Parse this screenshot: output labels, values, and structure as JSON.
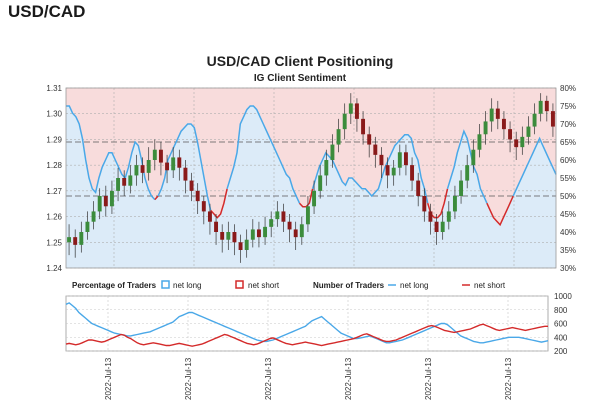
{
  "heading": "USD/CAD",
  "chart_data": {
    "type": "line",
    "title": "USD/CAD Client Positioning",
    "subtitle": "IG Client Sentiment",
    "price_axis": {
      "ticks": [
        "1.24",
        "1.25",
        "1.26",
        "1.27",
        "1.28",
        "1.29",
        "1.30",
        "1.31"
      ],
      "ylim": [
        1.24,
        1.31
      ]
    },
    "percent_axis": {
      "ticks": [
        "30%",
        "35%",
        "40%",
        "45%",
        "50%",
        "55%",
        "60%",
        "65%",
        "70%",
        "75%",
        "80%"
      ],
      "ylim": [
        30,
        80
      ]
    },
    "traders_axis": {
      "ticks": [
        "200",
        "400",
        "600",
        "800",
        "1000"
      ],
      "ylim": [
        200,
        1000
      ]
    },
    "x_tick_labels": [
      "2022-Jul-13",
      "2022-Jul-13",
      "2022-Jul-13",
      "2022-Jul-13",
      "2022-Jul-13",
      "2022-Jul-13"
    ],
    "legend": {
      "pct_label": "Percentage of Traders",
      "pct_long": "net long",
      "pct_short": "net short",
      "num_label": "Number of Traders",
      "num_long": "net long",
      "num_short": "net short"
    },
    "colors": {
      "long": "#4aa8e8",
      "short": "#d42a2a",
      "long_fill": "#dcebf8",
      "short_fill": "#f8dcdc",
      "up": "#3c8c3c",
      "down": "#8a1a1a"
    },
    "net_long_pct": [
      75,
      75,
      73,
      72,
      70,
      66,
      60,
      55,
      52,
      51,
      55,
      58,
      60,
      62,
      62,
      60,
      58,
      56,
      55,
      58,
      62,
      65,
      64,
      60,
      55,
      52,
      50,
      49,
      50,
      52,
      55,
      60,
      62,
      64,
      66,
      68,
      69,
      70,
      70,
      69,
      65,
      60,
      55,
      50,
      46,
      45,
      44,
      45,
      48,
      52,
      55,
      58,
      62,
      70,
      72,
      74,
      75,
      75,
      74,
      72,
      70,
      68,
      66,
      64,
      62,
      60,
      58,
      56,
      55,
      52,
      50,
      48,
      47,
      47,
      48,
      52,
      55,
      58,
      60,
      62,
      61,
      60,
      58,
      56,
      54,
      53,
      55,
      55,
      54,
      53,
      52,
      52,
      51,
      50,
      51,
      52,
      55,
      58,
      60,
      62,
      64,
      65,
      66,
      67,
      67,
      66,
      62,
      60,
      55,
      52,
      48,
      45,
      44,
      44,
      45,
      48,
      52,
      55,
      58,
      62,
      65,
      68,
      66,
      62,
      58,
      56,
      52,
      50,
      48,
      46,
      44,
      43,
      42,
      44,
      46,
      48,
      50,
      52,
      54,
      56,
      58,
      60,
      62,
      64,
      66,
      64,
      62,
      60,
      58,
      56
    ],
    "candles": [
      [
        1.25,
        1.252,
        1.245,
        1.257
      ],
      [
        1.252,
        1.249,
        1.244,
        1.255
      ],
      [
        1.249,
        1.254,
        1.246,
        1.258
      ],
      [
        1.254,
        1.258,
        1.251,
        1.262
      ],
      [
        1.258,
        1.262,
        1.255,
        1.266
      ],
      [
        1.262,
        1.268,
        1.259,
        1.271
      ],
      [
        1.268,
        1.264,
        1.26,
        1.272
      ],
      [
        1.264,
        1.27,
        1.261,
        1.274
      ],
      [
        1.27,
        1.275,
        1.266,
        1.279
      ],
      [
        1.275,
        1.272,
        1.268,
        1.278
      ],
      [
        1.272,
        1.276,
        1.269,
        1.28
      ],
      [
        1.276,
        1.28,
        1.272,
        1.284
      ],
      [
        1.28,
        1.277,
        1.273,
        1.283
      ],
      [
        1.277,
        1.282,
        1.274,
        1.287
      ],
      [
        1.282,
        1.286,
        1.278,
        1.29
      ],
      [
        1.286,
        1.281,
        1.276,
        1.289
      ],
      [
        1.281,
        1.278,
        1.273,
        1.284
      ],
      [
        1.278,
        1.283,
        1.275,
        1.287
      ],
      [
        1.283,
        1.279,
        1.274,
        1.286
      ],
      [
        1.279,
        1.274,
        1.269,
        1.282
      ],
      [
        1.274,
        1.27,
        1.266,
        1.277
      ],
      [
        1.27,
        1.266,
        1.261,
        1.273
      ],
      [
        1.266,
        1.262,
        1.257,
        1.268
      ],
      [
        1.262,
        1.258,
        1.253,
        1.265
      ],
      [
        1.258,
        1.254,
        1.249,
        1.261
      ],
      [
        1.254,
        1.251,
        1.246,
        1.257
      ],
      [
        1.251,
        1.254,
        1.247,
        1.258
      ],
      [
        1.254,
        1.25,
        1.245,
        1.257
      ],
      [
        1.25,
        1.247,
        1.242,
        1.253
      ],
      [
        1.247,
        1.251,
        1.244,
        1.255
      ],
      [
        1.251,
        1.255,
        1.248,
        1.259
      ],
      [
        1.255,
        1.252,
        1.248,
        1.258
      ],
      [
        1.252,
        1.256,
        1.249,
        1.26
      ],
      [
        1.256,
        1.259,
        1.252,
        1.262
      ],
      [
        1.259,
        1.262,
        1.256,
        1.266
      ],
      [
        1.262,
        1.258,
        1.254,
        1.265
      ],
      [
        1.258,
        1.255,
        1.25,
        1.261
      ],
      [
        1.255,
        1.252,
        1.247,
        1.258
      ],
      [
        1.252,
        1.257,
        1.249,
        1.26
      ],
      [
        1.257,
        1.264,
        1.254,
        1.268
      ],
      [
        1.264,
        1.27,
        1.261,
        1.274
      ],
      [
        1.27,
        1.276,
        1.267,
        1.28
      ],
      [
        1.276,
        1.282,
        1.272,
        1.286
      ],
      [
        1.282,
        1.288,
        1.279,
        1.292
      ],
      [
        1.288,
        1.294,
        1.285,
        1.298
      ],
      [
        1.294,
        1.3,
        1.29,
        1.304
      ],
      [
        1.3,
        1.304,
        1.296,
        1.308
      ],
      [
        1.304,
        1.298,
        1.293,
        1.306
      ],
      [
        1.298,
        1.292,
        1.288,
        1.301
      ],
      [
        1.292,
        1.288,
        1.283,
        1.295
      ],
      [
        1.288,
        1.284,
        1.279,
        1.291
      ],
      [
        1.284,
        1.28,
        1.275,
        1.287
      ],
      [
        1.28,
        1.276,
        1.271,
        1.283
      ],
      [
        1.276,
        1.279,
        1.272,
        1.282
      ],
      [
        1.279,
        1.285,
        1.276,
        1.288
      ],
      [
        1.285,
        1.28,
        1.276,
        1.288
      ],
      [
        1.28,
        1.274,
        1.27,
        1.283
      ],
      [
        1.274,
        1.268,
        1.264,
        1.277
      ],
      [
        1.268,
        1.262,
        1.258,
        1.271
      ],
      [
        1.262,
        1.258,
        1.253,
        1.265
      ],
      [
        1.258,
        1.254,
        1.249,
        1.261
      ],
      [
        1.254,
        1.258,
        1.251,
        1.262
      ],
      [
        1.258,
        1.262,
        1.255,
        1.266
      ],
      [
        1.262,
        1.268,
        1.259,
        1.272
      ],
      [
        1.268,
        1.274,
        1.265,
        1.278
      ],
      [
        1.274,
        1.28,
        1.271,
        1.284
      ],
      [
        1.28,
        1.286,
        1.277,
        1.29
      ],
      [
        1.286,
        1.292,
        1.283,
        1.296
      ],
      [
        1.292,
        1.297,
        1.288,
        1.301
      ],
      [
        1.297,
        1.302,
        1.293,
        1.306
      ],
      [
        1.302,
        1.298,
        1.294,
        1.305
      ],
      [
        1.298,
        1.294,
        1.29,
        1.301
      ],
      [
        1.294,
        1.29,
        1.285,
        1.297
      ],
      [
        1.29,
        1.287,
        1.282,
        1.293
      ],
      [
        1.287,
        1.291,
        1.284,
        1.295
      ],
      [
        1.291,
        1.295,
        1.288,
        1.299
      ],
      [
        1.295,
        1.3,
        1.292,
        1.304
      ],
      [
        1.3,
        1.305,
        1.297,
        1.308
      ],
      [
        1.305,
        1.301,
        1.297,
        1.307
      ],
      [
        1.301,
        1.295,
        1.291,
        1.304
      ]
    ],
    "net_long_traders": [
      880,
      900,
      860,
      820,
      760,
      720,
      680,
      640,
      600,
      580,
      560,
      540,
      520,
      500,
      480,
      460,
      450,
      440,
      430,
      420,
      420,
      430,
      440,
      450,
      460,
      470,
      480,
      500,
      520,
      540,
      560,
      580,
      600,
      620,
      660,
      700,
      720,
      740,
      760,
      760,
      740,
      720,
      700,
      680,
      660,
      640,
      620,
      600,
      580,
      560,
      540,
      520,
      500,
      480,
      460,
      440,
      420,
      400,
      380,
      360,
      350,
      340,
      340,
      350,
      360,
      380,
      400,
      420,
      440,
      460,
      480,
      500,
      520,
      540,
      560,
      600,
      640,
      660,
      680,
      700,
      660,
      620,
      580,
      540,
      500,
      460,
      440,
      420,
      400,
      380,
      380,
      390,
      400,
      410,
      420,
      400,
      380,
      360,
      340,
      320,
      320,
      330,
      340,
      350,
      360,
      380,
      400,
      420,
      440,
      460,
      480,
      500,
      520,
      540,
      560,
      580,
      600,
      600,
      580,
      540,
      500,
      460,
      420,
      400,
      380,
      360,
      340,
      330,
      320,
      320,
      330,
      340,
      350,
      360,
      370,
      380,
      390,
      400,
      400,
      400,
      400,
      390,
      380,
      370,
      360,
      350,
      340,
      330,
      340,
      350
    ],
    "net_short_traders": [
      300,
      310,
      300,
      290,
      300,
      320,
      340,
      360,
      360,
      350,
      340,
      330,
      340,
      360,
      380,
      400,
      420,
      440,
      430,
      400,
      380,
      350,
      320,
      300,
      290,
      300,
      310,
      320,
      310,
      300,
      290,
      280,
      280,
      290,
      300,
      310,
      300,
      290,
      280,
      270,
      280,
      290,
      300,
      320,
      340,
      360,
      380,
      400,
      420,
      440,
      430,
      410,
      390,
      370,
      350,
      330,
      310,
      300,
      290,
      300,
      320,
      340,
      360,
      380,
      390,
      370,
      350,
      330,
      310,
      300,
      290,
      300,
      310,
      320,
      330,
      320,
      310,
      300,
      290,
      280,
      290,
      300,
      310,
      320,
      330,
      340,
      350,
      360,
      370,
      380,
      400,
      420,
      440,
      450,
      430,
      410,
      390,
      370,
      350,
      340,
      340,
      350,
      360,
      380,
      400,
      420,
      440,
      460,
      480,
      500,
      520,
      540,
      560,
      570,
      560,
      540,
      520,
      500,
      490,
      480,
      470,
      480,
      490,
      500,
      510,
      520,
      540,
      560,
      580,
      590,
      570,
      550,
      530,
      510,
      500,
      510,
      520,
      530,
      540,
      530,
      520,
      510,
      500,
      510,
      520,
      530,
      540,
      550,
      560,
      560
    ]
  }
}
